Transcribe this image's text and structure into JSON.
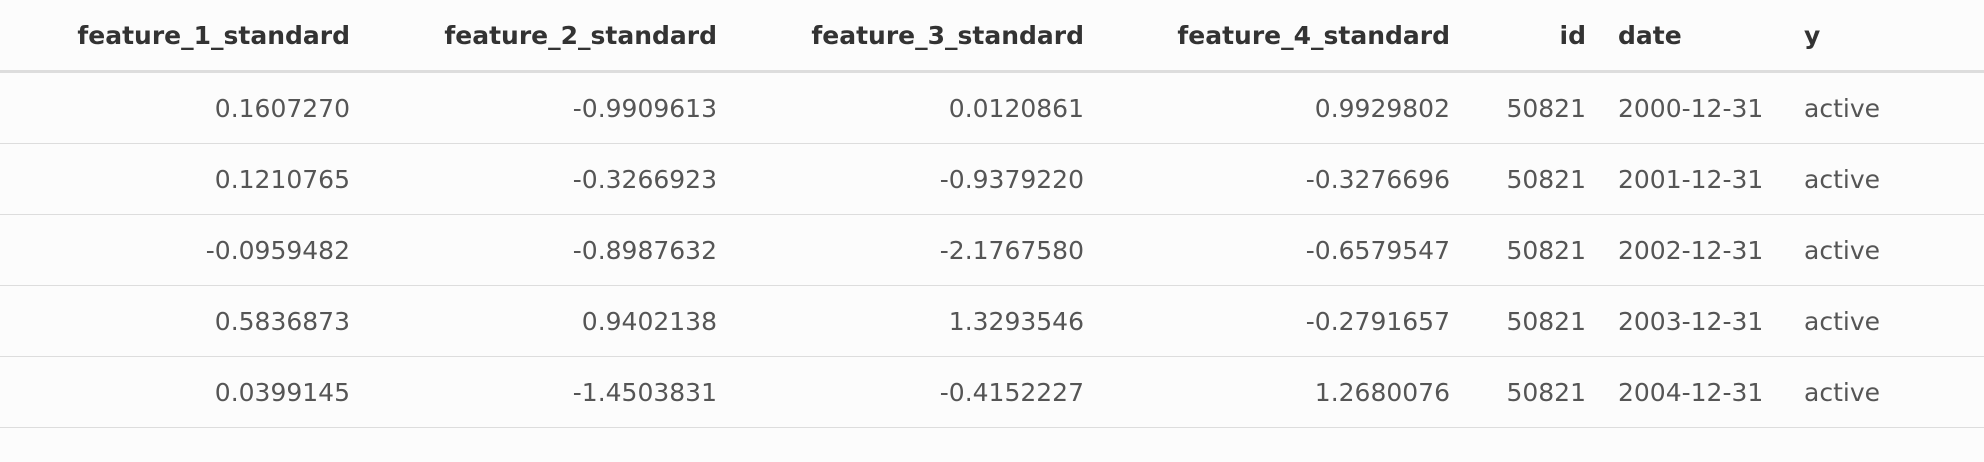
{
  "table": {
    "headers": [
      "feature_1_standard",
      "feature_2_standard",
      "feature_3_standard",
      "feature_4_standard",
      "id",
      "date",
      "y"
    ],
    "rows": [
      [
        "0.1607270",
        "-0.9909613",
        "0.0120861",
        "0.9929802",
        "50821",
        "2000-12-31",
        "active"
      ],
      [
        "0.1210765",
        "-0.3266923",
        "-0.9379220",
        "-0.3276696",
        "50821",
        "2001-12-31",
        "active"
      ],
      [
        "-0.0959482",
        "-0.8987632",
        "-2.1767580",
        "-0.6579547",
        "50821",
        "2002-12-31",
        "active"
      ],
      [
        "0.5836873",
        "0.9402138",
        "1.3293546",
        "-0.2791657",
        "50821",
        "2003-12-31",
        "active"
      ],
      [
        "0.0399145",
        "-1.4503831",
        "-0.4152227",
        "1.2680076",
        "50821",
        "2004-12-31",
        "active"
      ]
    ]
  }
}
